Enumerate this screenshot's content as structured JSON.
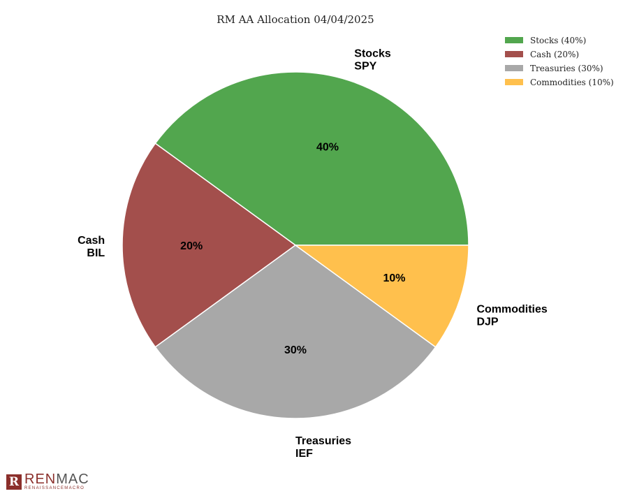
{
  "chart_data": {
    "type": "pie",
    "title": "RM AA Allocation 04/04/2025",
    "slices": [
      {
        "name": "Stocks",
        "ticker": "SPY",
        "value": 40,
        "pct_label": "40%",
        "legend": "Stocks (40%)",
        "color": "#52a64e"
      },
      {
        "name": "Cash",
        "ticker": "BIL",
        "value": 20,
        "pct_label": "20%",
        "legend": "Cash (20%)",
        "color": "#a34f4c"
      },
      {
        "name": "Treasuries",
        "ticker": "IEF",
        "value": 30,
        "pct_label": "30%",
        "legend": "Treasuries (30%)",
        "color": "#a8a8a8"
      },
      {
        "name": "Commodities",
        "ticker": "DJP",
        "value": 10,
        "pct_label": "10%",
        "legend": "Commodities (10%)",
        "color": "#ffc04d"
      }
    ],
    "legend_position": "top-right",
    "start_angle_deg": 0,
    "direction": "counterclockwise"
  },
  "logo": {
    "mark": "R",
    "name_part1": "REN",
    "name_part2": "MAC",
    "tagline": "RENAISSANCEMACRO"
  }
}
